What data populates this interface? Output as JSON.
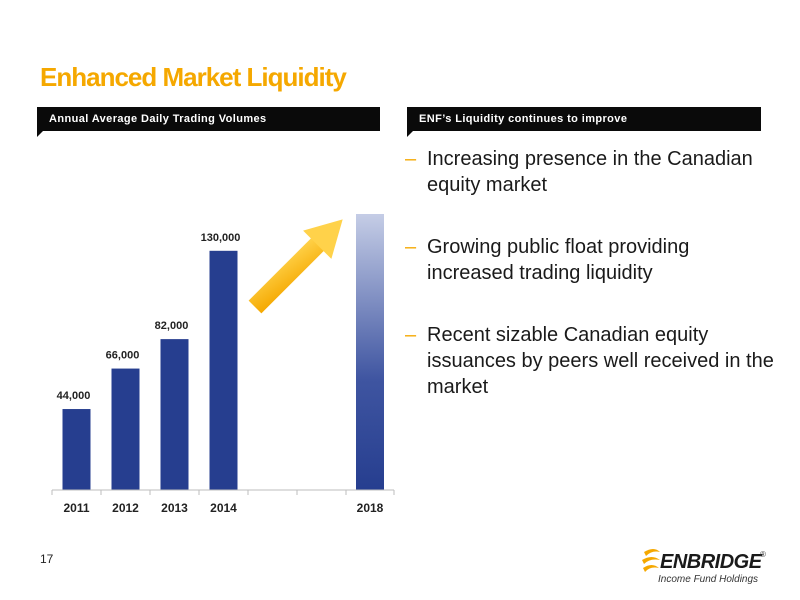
{
  "slide": {
    "title": "Enhanced Market Liquidity",
    "page_number": "17"
  },
  "left_panel": {
    "header": "Annual Average Daily Trading Volumes"
  },
  "right_panel": {
    "header": "ENF’s Liquidity continues to improve",
    "bullets": [
      "Increasing presence in the Canadian equity market",
      "Growing public float providing increased trading liquidity",
      "Recent sizable Canadian equity issuances by peers well received in the market"
    ],
    "bullet_marker": "–"
  },
  "chart_data": {
    "type": "bar",
    "title": "Annual Average Daily Trading Volumes",
    "categories": [
      "2011",
      "2012",
      "2013",
      "2014",
      "",
      "",
      "2018"
    ],
    "values": [
      44000,
      66000,
      82000,
      130000,
      null,
      null,
      150000
    ],
    "data_labels": [
      "44,000",
      "66,000",
      "82,000",
      "130,000",
      "",
      "",
      ""
    ],
    "ylim": [
      0,
      150000
    ],
    "grid": false,
    "annotation": "upward trend arrow",
    "colors": {
      "bar": "#263e8f",
      "bar_2018_top": "#c5cde6",
      "arrow": "#f5a800",
      "axis": "#bdbdbd"
    }
  },
  "logo": {
    "name": "ENBRIDGE",
    "registered": "®",
    "subtitle": "Income Fund Holdings",
    "color": "#f5a800"
  }
}
